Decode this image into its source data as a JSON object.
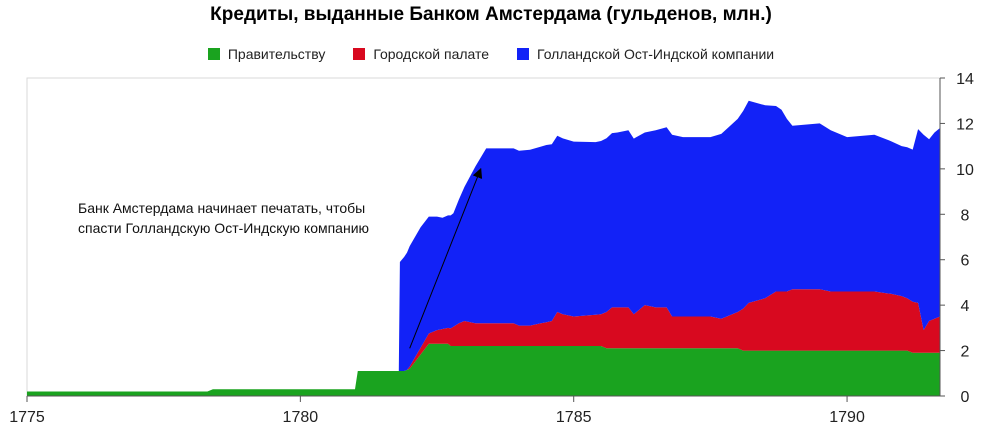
{
  "chart_data": {
    "type": "area",
    "stacked": true,
    "title": "Кредиты, выданные Банком Амстердама (гульденов, млн.)",
    "xlabel": "",
    "ylabel": "",
    "xlim": [
      1775,
      1791.7
    ],
    "ylim": [
      0,
      14
    ],
    "x_ticks": [
      "1775",
      "1780",
      "1785",
      "1790"
    ],
    "y_ticks": [
      "0",
      "2",
      "4",
      "6",
      "8",
      "10",
      "12",
      "14"
    ],
    "legend_position": "top",
    "grid": false,
    "series": [
      {
        "name": "Правительству",
        "color": "#1aa31f",
        "points": [
          [
            1775,
            0.2
          ],
          [
            1778.3,
            0.2
          ],
          [
            1778.4,
            0.3
          ],
          [
            1781,
            0.3
          ],
          [
            1781.05,
            1.1
          ],
          [
            1781.9,
            1.1
          ],
          [
            1782.0,
            1.2
          ],
          [
            1782.35,
            2.3
          ],
          [
            1782.7,
            2.3
          ],
          [
            1782.75,
            2.2
          ],
          [
            1785.5,
            2.2
          ],
          [
            1785.6,
            2.1
          ],
          [
            1788.0,
            2.1
          ],
          [
            1788.1,
            2.0
          ],
          [
            1791.1,
            2.0
          ],
          [
            1791.2,
            1.9
          ],
          [
            1791.7,
            1.9
          ]
        ]
      },
      {
        "name": "Городской палате",
        "color": "#d8091f",
        "points": [
          [
            1775,
            0
          ],
          [
            1781.95,
            0
          ],
          [
            1782.0,
            0.1
          ],
          [
            1782.3,
            0.4
          ],
          [
            1782.5,
            0.6
          ],
          [
            1782.7,
            0.7
          ],
          [
            1782.9,
            1.0
          ],
          [
            1783.0,
            1.1
          ],
          [
            1783.2,
            1.0
          ],
          [
            1783.6,
            1.0
          ],
          [
            1783.9,
            1.0
          ],
          [
            1784.0,
            0.9
          ],
          [
            1784.2,
            0.9
          ],
          [
            1784.4,
            1.0
          ],
          [
            1784.6,
            1.1
          ],
          [
            1784.7,
            1.5
          ],
          [
            1784.8,
            1.4
          ],
          [
            1785.0,
            1.3
          ],
          [
            1785.5,
            1.4
          ],
          [
            1785.7,
            1.8
          ],
          [
            1786.0,
            1.8
          ],
          [
            1786.1,
            1.5
          ],
          [
            1786.3,
            1.9
          ],
          [
            1786.5,
            1.8
          ],
          [
            1786.7,
            1.8
          ],
          [
            1786.8,
            1.4
          ],
          [
            1787.5,
            1.4
          ],
          [
            1787.7,
            1.3
          ],
          [
            1787.8,
            1.4
          ],
          [
            1788.0,
            1.6
          ],
          [
            1788.2,
            2.1
          ],
          [
            1788.5,
            2.3
          ],
          [
            1788.7,
            2.6
          ],
          [
            1788.9,
            2.6
          ],
          [
            1789.0,
            2.7
          ],
          [
            1789.5,
            2.7
          ],
          [
            1789.7,
            2.6
          ],
          [
            1790.5,
            2.6
          ],
          [
            1790.8,
            2.5
          ],
          [
            1791.0,
            2.4
          ],
          [
            1791.1,
            2.3
          ],
          [
            1791.3,
            2.2
          ],
          [
            1791.4,
            1.0
          ],
          [
            1791.5,
            1.4
          ],
          [
            1791.6,
            1.5
          ],
          [
            1791.7,
            1.6
          ]
        ]
      },
      {
        "name": "Голландской Ост-Индской компании",
        "color": "#1222f7",
        "points": [
          [
            1775,
            0
          ],
          [
            1781.8,
            0
          ],
          [
            1781.82,
            4.8
          ],
          [
            1782.0,
            5.3
          ],
          [
            1782.2,
            5.3
          ],
          [
            1782.4,
            5.1
          ],
          [
            1782.6,
            4.9
          ],
          [
            1782.8,
            5.0
          ],
          [
            1783.0,
            5.9
          ],
          [
            1783.2,
            6.9
          ],
          [
            1783.4,
            7.7
          ],
          [
            1784.0,
            7.7
          ],
          [
            1784.5,
            7.8
          ],
          [
            1785.0,
            7.7
          ],
          [
            1785.4,
            7.6
          ],
          [
            1785.8,
            7.7
          ],
          [
            1786.0,
            7.8
          ],
          [
            1786.3,
            7.6
          ],
          [
            1786.5,
            7.8
          ],
          [
            1786.8,
            8.0
          ],
          [
            1787.0,
            7.9
          ],
          [
            1787.5,
            7.9
          ],
          [
            1788.0,
            8.5
          ],
          [
            1788.2,
            8.9
          ],
          [
            1788.5,
            8.5
          ],
          [
            1788.8,
            8.0
          ],
          [
            1789.0,
            7.2
          ],
          [
            1789.5,
            7.3
          ],
          [
            1790.0,
            6.8
          ],
          [
            1790.5,
            6.9
          ],
          [
            1791.0,
            6.6
          ],
          [
            1791.2,
            6.7
          ],
          [
            1791.4,
            8.6
          ],
          [
            1791.5,
            8.0
          ],
          [
            1791.6,
            8.2
          ],
          [
            1791.7,
            8.3
          ]
        ]
      }
    ],
    "annotation": {
      "text": "Банк Амстердама начинает печатать, чтобы спасти Голландскую Ост-Индскую компанию",
      "arrow_from": [
        1782.0,
        2.1
      ],
      "arrow_to": [
        1783.3,
        10.0
      ]
    }
  }
}
